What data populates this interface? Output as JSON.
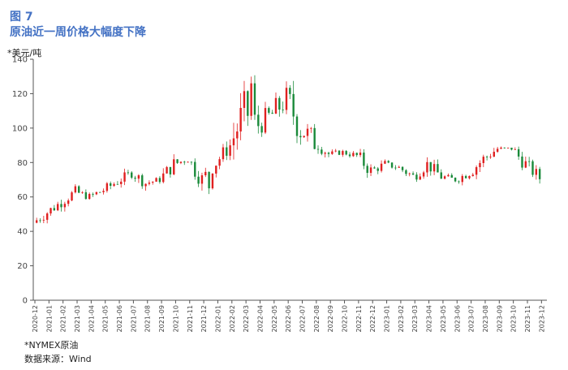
{
  "figure": {
    "label": "图 7",
    "title": "原油近一周价格大幅度下降",
    "unit_label": "*美元/吨",
    "note": "*NYMEX原油",
    "source": "数据来源：Wind"
  },
  "colors": {
    "up": "#e02020",
    "down": "#1a8a3a",
    "axis": "#555555",
    "title": "#4472c4"
  },
  "chart_data": {
    "type": "candlestick",
    "title": "",
    "xlabel": "",
    "ylabel": "*美元/吨",
    "ylim": [
      0,
      140
    ],
    "yticks": [
      0,
      20,
      40,
      60,
      80,
      100,
      120,
      140
    ],
    "grid": false,
    "legend": "none",
    "x_ticks": [
      "2020-12",
      "2021-01",
      "2021-02",
      "2021-03",
      "2021-04",
      "2021-05",
      "2021-06",
      "2021-07",
      "2021-08",
      "2021-09",
      "2021-10",
      "2021-11",
      "2021-12",
      "2022-01",
      "2022-02",
      "2022-03",
      "2022-04",
      "2022-05",
      "2022-06",
      "2022-07",
      "2022-08",
      "2022-09",
      "2022-10",
      "2022-11",
      "2022-12",
      "2023-01",
      "2023-02",
      "2023-03",
      "2023-04",
      "2023-05",
      "2023-06",
      "2023-07",
      "2023-08",
      "2023-09",
      "2023-10",
      "2023-11",
      "2023-12"
    ],
    "x_range": [
      "2020-12-01",
      "2023-12-15"
    ],
    "approx_close_by_month": [
      [
        "2020-12",
        45
      ],
      [
        "2021-01",
        51
      ],
      [
        "2021-02",
        57
      ],
      [
        "2021-03",
        63
      ],
      [
        "2021-04",
        60
      ],
      [
        "2021-05",
        64
      ],
      [
        "2021-06",
        69
      ],
      [
        "2021-07",
        74
      ],
      [
        "2021-08",
        68
      ],
      [
        "2021-09",
        70
      ],
      [
        "2021-10",
        79
      ],
      [
        "2021-11",
        82
      ],
      [
        "2021-12",
        70
      ],
      [
        "2022-01",
        80
      ],
      [
        "2022-02",
        90
      ],
      [
        "2022-03",
        110
      ],
      [
        "2022-04",
        102
      ],
      [
        "2022-05",
        108
      ],
      [
        "2022-06",
        117
      ],
      [
        "2022-07",
        100
      ],
      [
        "2022-08",
        92
      ],
      [
        "2022-09",
        85
      ],
      [
        "2022-10",
        86
      ],
      [
        "2022-11",
        84
      ],
      [
        "2022-12",
        75
      ],
      [
        "2023-01",
        79
      ],
      [
        "2023-02",
        77
      ],
      [
        "2023-03",
        72
      ],
      [
        "2023-04",
        79
      ],
      [
        "2023-05",
        72
      ],
      [
        "2023-06",
        70
      ],
      [
        "2023-07",
        74
      ],
      [
        "2023-08",
        82
      ],
      [
        "2023-09",
        88
      ],
      [
        "2023-10",
        88
      ],
      [
        "2023-11",
        79
      ],
      [
        "2023-12",
        71
      ]
    ],
    "extremes": {
      "max": 130,
      "min": 45
    }
  }
}
